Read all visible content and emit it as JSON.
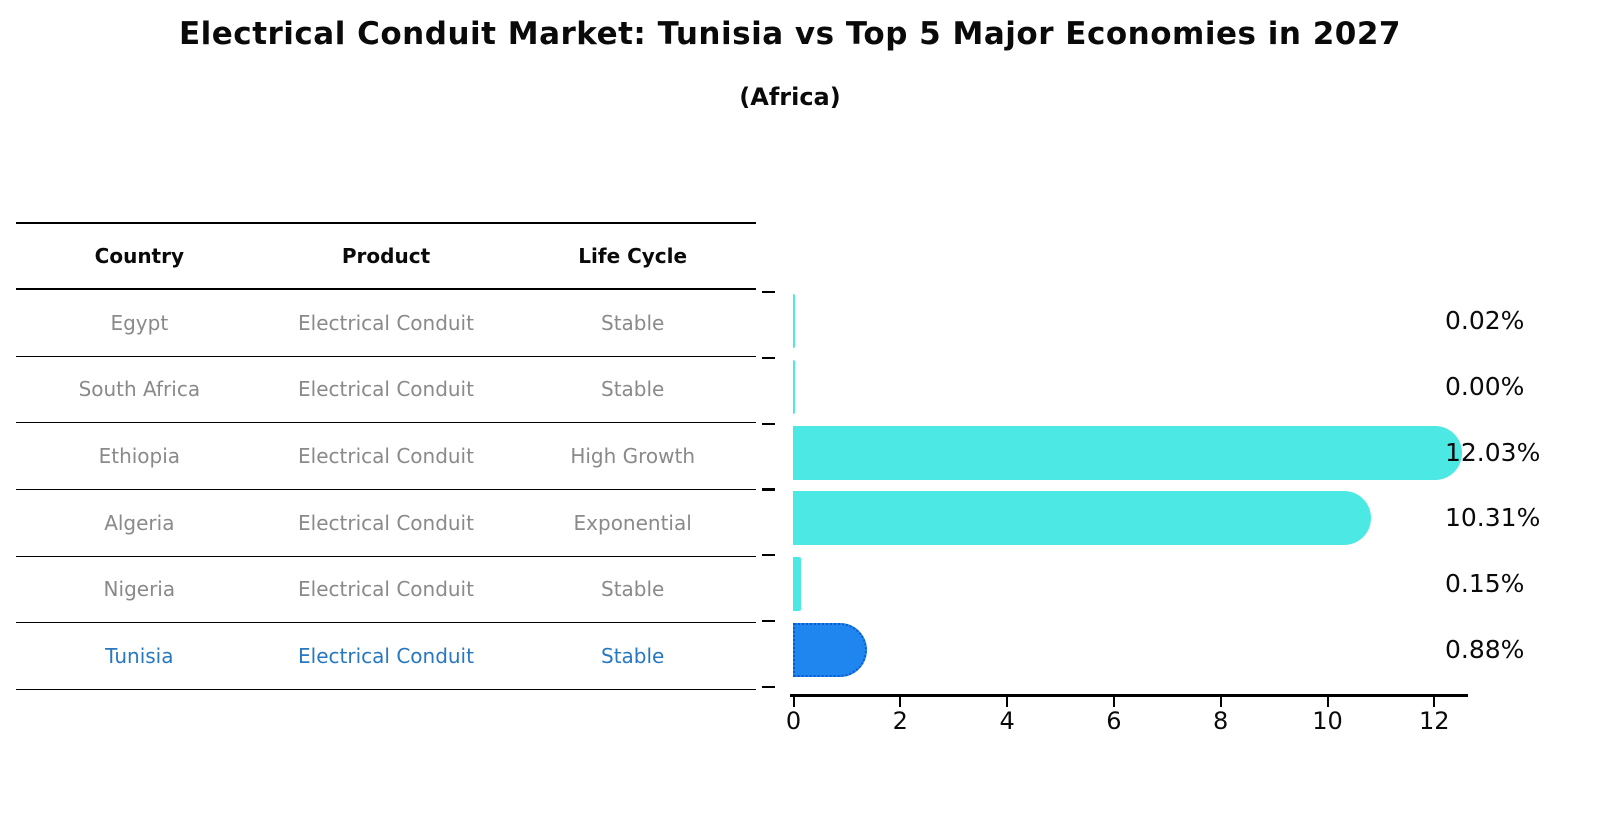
{
  "title": "Electrical Conduit Market: Tunisia vs Top 5 Major Economies in 2027",
  "subtitle": "(Africa)",
  "table": {
    "headers": [
      "Country",
      "Product",
      "Life Cycle"
    ],
    "rows": [
      {
        "country": "Egypt",
        "product": "Electrical Conduit",
        "life_cycle": "Stable",
        "highlight": false
      },
      {
        "country": "South Africa",
        "product": "Electrical Conduit",
        "life_cycle": "Stable",
        "highlight": false
      },
      {
        "country": "Ethiopia",
        "product": "Electrical Conduit",
        "life_cycle": "High Growth",
        "highlight": false
      },
      {
        "country": "Algeria",
        "product": "Electrical Conduit",
        "life_cycle": "Exponential",
        "highlight": false
      },
      {
        "country": "Nigeria",
        "product": "Electrical Conduit",
        "life_cycle": "Stable",
        "highlight": false
      },
      {
        "country": "Tunisia",
        "product": "Electrical Conduit",
        "life_cycle": "Stable",
        "highlight": true
      }
    ]
  },
  "chart_data": {
    "type": "bar",
    "orientation": "horizontal",
    "categories": [
      "Egypt",
      "South Africa",
      "Ethiopia",
      "Algeria",
      "Nigeria",
      "Tunisia"
    ],
    "values": [
      0.02,
      0.0,
      12.03,
      10.31,
      0.15,
      0.88
    ],
    "value_labels": [
      "0.02%",
      "0.00%",
      "12.03%",
      "10.31%",
      "0.15%",
      "0.88%"
    ],
    "title": "Electrical Conduit Market: Tunisia vs Top 5 Major Economies in 2027 (Africa)",
    "xlabel": "",
    "ylabel": "",
    "xlim": [
      0,
      12.64
    ],
    "xticks": [
      "0",
      "2",
      "4",
      "6",
      "8",
      "10",
      "12"
    ],
    "grid": false,
    "legend": false,
    "highlight_index": 5
  },
  "colors": {
    "bar": "#4be8e4",
    "highlight_bar": "#1e86ee",
    "highlight_border": "#0b5bd0",
    "highlight_text": "#2878c0",
    "table_text": "#8a8a8a",
    "text": "#0a0a0a"
  }
}
